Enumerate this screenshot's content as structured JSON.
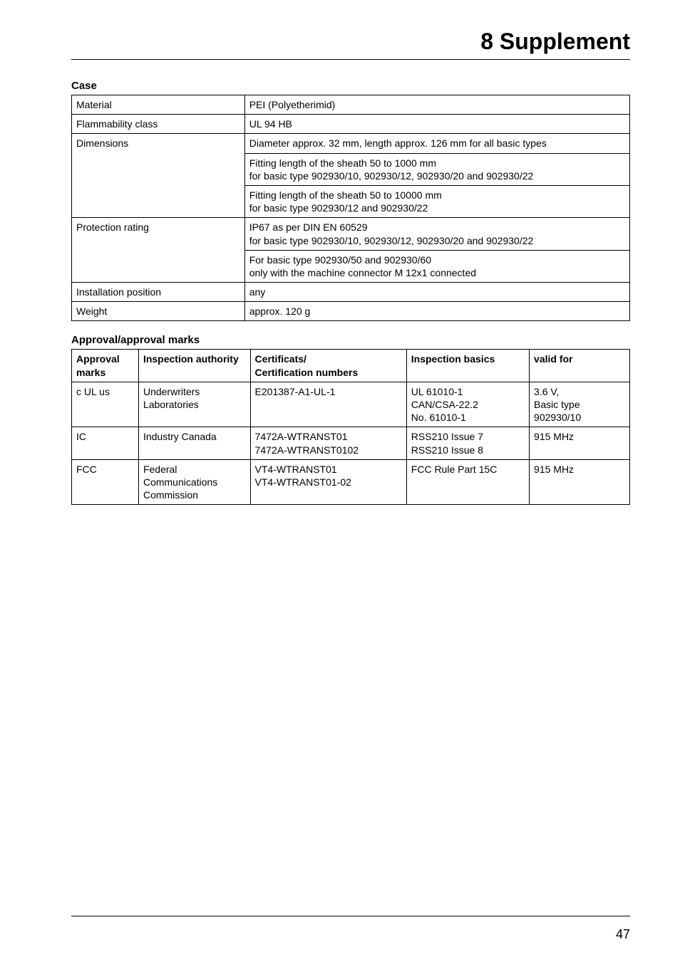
{
  "chapter_title": "8 Supplement",
  "page_number": "47",
  "case": {
    "heading": "Case",
    "rows": [
      {
        "label": "Material",
        "cells": [
          "PEI (Polyetherimid)"
        ]
      },
      {
        "label": "Flammability class",
        "cells": [
          "UL 94 HB"
        ]
      },
      {
        "label": "Dimensions",
        "cells": [
          "Diameter approx. 32 mm, length approx. 126 mm for all basic types",
          "Fitting length of the sheath 50 to 1000 mm\nfor basic type 902930/10, 902930/12, 902930/20 and 902930/22",
          "Fitting length of the sheath 50 to 10000 mm\nfor basic type 902930/12 and 902930/22"
        ]
      },
      {
        "label": "Protection rating",
        "cells": [
          "IP67 as per DIN EN 60529\nfor basic type 902930/10, 902930/12, 902930/20 and 902930/22",
          "For basic type 902930/50 and 902930/60\nonly with the machine connector M 12x1 connected"
        ]
      },
      {
        "label": "Installation position",
        "cells": [
          "any"
        ]
      },
      {
        "label": "Weight",
        "cells": [
          "approx. 120 g"
        ]
      }
    ]
  },
  "approvals": {
    "heading": "Approval/approval marks",
    "columns": [
      "Approval marks",
      "Inspection authority",
      "Certificats/\nCertification numbers",
      "Inspection basics",
      "valid for"
    ],
    "col_widths": [
      "12%",
      "20%",
      "28%",
      "22%",
      "18%"
    ],
    "rows": [
      {
        "marks": "c UL us",
        "authority": "Underwriters Laboratories",
        "cert": "E201387-A1-UL-1",
        "basics": "UL 61010-1\nCAN/CSA-22.2\nNo. 61010-1",
        "valid": "3.6 V,\nBasic type\n902930/10"
      },
      {
        "marks": "IC",
        "authority": "Industry Canada",
        "cert": "7472A-WTRANST01\n7472A-WTRANST0102",
        "basics": "RSS210 Issue 7\nRSS210 Issue 8",
        "valid": "915 MHz"
      },
      {
        "marks": "FCC",
        "authority": "Federal Communications Commission",
        "cert": "VT4-WTRANST01\nVT4-WTRANST01-02",
        "basics": "FCC Rule Part 15C",
        "valid": "915 MHz"
      }
    ]
  }
}
